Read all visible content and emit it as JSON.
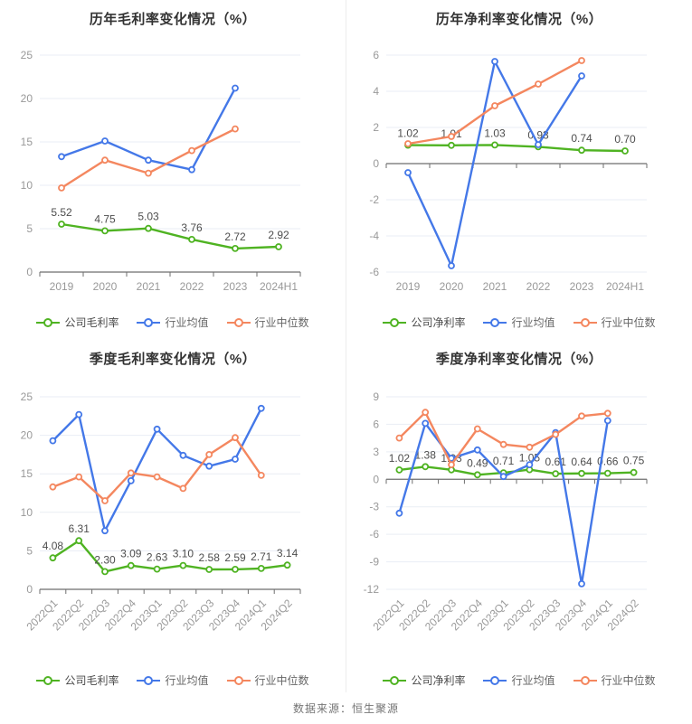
{
  "footer": {
    "source": "数据来源：恒生聚源"
  },
  "colors": {
    "company": "#4fb322",
    "industry_avg": "#4478e8",
    "industry_median": "#f4875f",
    "grid_line": "#e9edf4",
    "axis_line": "#6e6e6e",
    "tick_label": "#999999",
    "value_label": "#4d4d4d",
    "title": "#333333",
    "divider": "#ededed"
  },
  "chart_data": [
    {
      "id": "annual-gross-margin",
      "type": "line",
      "title": "历年毛利率变化情况（%）",
      "categories": [
        "2019",
        "2020",
        "2021",
        "2022",
        "2023",
        "2024H1"
      ],
      "yticks": [
        25,
        20,
        15,
        10,
        5,
        0
      ],
      "ylim": [
        0,
        25
      ],
      "grid": true,
      "legend_position": "bottom",
      "x_label_rotate": 0,
      "series": [
        {
          "id": "company-gross-margin",
          "name": "公司毛利率",
          "color": "#4fb322",
          "data_labels": true,
          "values": [
            5.52,
            4.75,
            5.03,
            3.76,
            2.72,
            2.92
          ]
        },
        {
          "id": "industry-average",
          "name": "行业均值",
          "color": "#4478e8",
          "data_labels": false,
          "values": [
            13.3,
            15.1,
            12.9,
            11.8,
            21.2,
            null
          ]
        },
        {
          "id": "industry-median",
          "name": "行业中位数",
          "color": "#f4875f",
          "data_labels": false,
          "values": [
            9.7,
            12.9,
            11.4,
            14.0,
            16.5,
            null
          ]
        }
      ]
    },
    {
      "id": "annual-net-margin",
      "type": "line",
      "title": "历年净利率变化情况（%）",
      "categories": [
        "2019",
        "2020",
        "2021",
        "2022",
        "2023",
        "2024H1"
      ],
      "yticks": [
        6,
        4,
        2,
        0,
        -2,
        -4,
        -6
      ],
      "ylim": [
        -6,
        6
      ],
      "grid": true,
      "legend_position": "bottom",
      "x_label_rotate": 0,
      "series": [
        {
          "id": "company-net-margin",
          "name": "公司净利率",
          "color": "#4fb322",
          "data_labels": true,
          "values": [
            1.02,
            1.01,
            1.03,
            0.93,
            0.74,
            0.7
          ]
        },
        {
          "id": "industry-average",
          "name": "行业均值",
          "color": "#4478e8",
          "data_labels": false,
          "values": [
            -0.5,
            -5.65,
            5.65,
            1.05,
            4.85,
            null
          ]
        },
        {
          "id": "industry-median",
          "name": "行业中位数",
          "color": "#f4875f",
          "data_labels": false,
          "values": [
            1.1,
            1.5,
            3.2,
            4.4,
            5.7,
            null
          ]
        }
      ]
    },
    {
      "id": "quarterly-gross-margin",
      "type": "line",
      "title": "季度毛利率变化情况（%）",
      "categories": [
        "2022Q1",
        "2022Q2",
        "2022Q3",
        "2022Q4",
        "2023Q1",
        "2023Q2",
        "2023Q3",
        "2023Q4",
        "2024Q1",
        "2024Q2"
      ],
      "yticks": [
        25,
        20,
        15,
        10,
        5,
        0
      ],
      "ylim": [
        0,
        25
      ],
      "grid": true,
      "legend_position": "bottom",
      "x_label_rotate": 45,
      "series": [
        {
          "id": "company-gross-margin",
          "name": "公司毛利率",
          "color": "#4fb322",
          "data_labels": true,
          "values": [
            4.08,
            6.31,
            2.3,
            3.09,
            2.63,
            3.1,
            2.58,
            2.59,
            2.71,
            3.14
          ]
        },
        {
          "id": "industry-average",
          "name": "行业均值",
          "color": "#4478e8",
          "data_labels": false,
          "values": [
            19.3,
            22.7,
            7.6,
            14.1,
            20.8,
            17.4,
            16.0,
            16.9,
            23.5,
            null
          ]
        },
        {
          "id": "industry-median",
          "name": "行业中位数",
          "color": "#f4875f",
          "data_labels": false,
          "values": [
            13.3,
            14.6,
            11.5,
            15.1,
            14.6,
            13.1,
            17.5,
            19.7,
            14.8,
            null
          ]
        }
      ]
    },
    {
      "id": "quarterly-net-margin",
      "type": "line",
      "title": "季度净利率变化情况（%）",
      "categories": [
        "2022Q1",
        "2022Q2",
        "2022Q3",
        "2022Q4",
        "2023Q1",
        "2023Q2",
        "2023Q3",
        "2023Q4",
        "2024Q1",
        "2024Q2"
      ],
      "yticks": [
        9,
        6,
        3,
        0,
        -3,
        -6,
        -9,
        -12
      ],
      "ylim": [
        -12,
        9
      ],
      "grid": true,
      "legend_position": "bottom",
      "x_label_rotate": 45,
      "series": [
        {
          "id": "company-net-margin",
          "name": "公司净利率",
          "color": "#4fb322",
          "data_labels": true,
          "values": [
            1.02,
            1.38,
            1.03,
            0.49,
            0.71,
            1.05,
            0.61,
            0.64,
            0.66,
            0.75
          ]
        },
        {
          "id": "industry-average",
          "name": "行业均值",
          "color": "#4478e8",
          "data_labels": false,
          "values": [
            -3.7,
            6.1,
            2.3,
            3.2,
            0.3,
            1.6,
            5.1,
            -11.4,
            6.4,
            null
          ]
        },
        {
          "id": "industry-median",
          "name": "行业中位数",
          "color": "#f4875f",
          "data_labels": false,
          "values": [
            4.5,
            7.3,
            1.6,
            5.5,
            3.8,
            3.5,
            4.9,
            6.9,
            7.2,
            null
          ]
        }
      ]
    }
  ]
}
